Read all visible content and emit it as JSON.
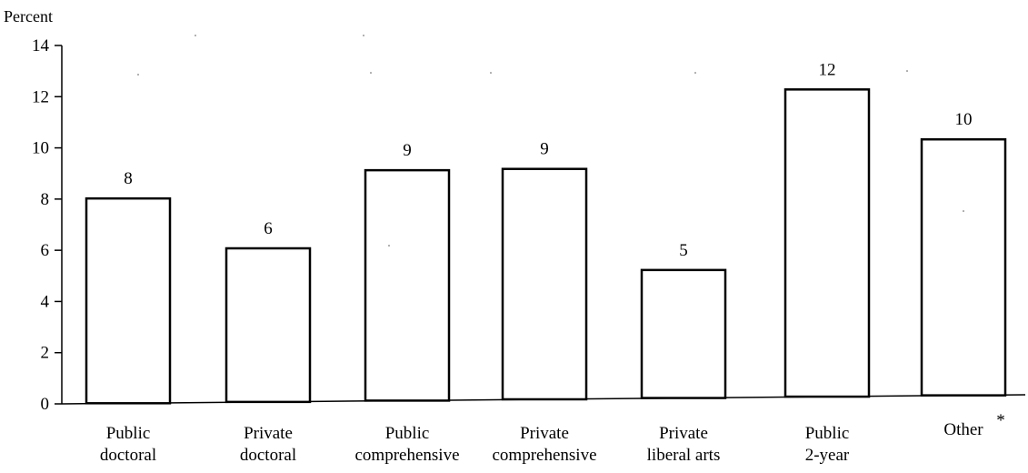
{
  "chart_data": {
    "type": "bar",
    "ylabel": "Percent",
    "ylim": [
      0,
      14
    ],
    "yticks": [
      0,
      2,
      4,
      6,
      8,
      10,
      12,
      14
    ],
    "categories": [
      [
        "Public",
        "doctoral"
      ],
      [
        "Private",
        "doctoral"
      ],
      [
        "Public",
        "comprehensive"
      ],
      [
        "Private",
        "comprehensive"
      ],
      [
        "Private",
        "liberal arts"
      ],
      [
        "Public",
        "2-year"
      ],
      [
        "Other"
      ]
    ],
    "values": [
      8,
      6,
      9,
      9,
      5,
      12,
      10
    ],
    "data_labels": [
      "8",
      "6",
      "9",
      "9",
      "5",
      "12",
      "10"
    ],
    "footnote_marker": "*",
    "grid": false,
    "legend": "none"
  }
}
